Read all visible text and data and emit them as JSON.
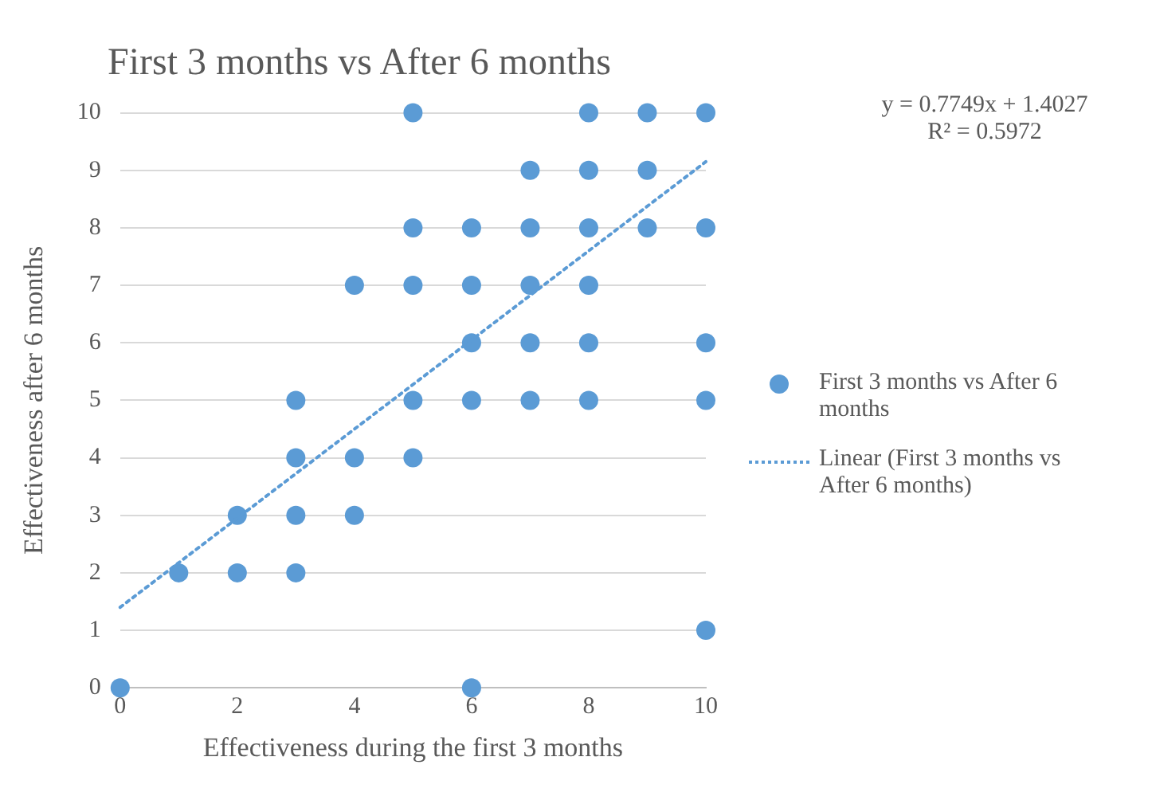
{
  "chart_data": {
    "type": "scatter",
    "title": "First 3 months vs After 6 months",
    "xlabel": "Effectiveness during the first 3 months",
    "ylabel": "Effectiveness after 6 months",
    "annotations": [
      "y = 0.7749x + 1.4027",
      "R² = 0.5972"
    ],
    "xlim": [
      0,
      10
    ],
    "xticks": [
      0,
      2,
      4,
      6,
      8,
      10
    ],
    "ylim": [
      0,
      10
    ],
    "yticks": [
      0,
      1,
      2,
      3,
      4,
      5,
      6,
      7,
      8,
      9,
      10
    ],
    "grid": "y",
    "legend": "right",
    "marker": "circle",
    "series": [
      {
        "name": "First 3 months vs After 6 months",
        "type": "scatter",
        "color": "#5b9bd5",
        "x": [
          5,
          8,
          9,
          10,
          7,
          8,
          9,
          5,
          6,
          7,
          8,
          9,
          10,
          4,
          5,
          6,
          7,
          8,
          6,
          7,
          8,
          10,
          3,
          5,
          6,
          7,
          8,
          10,
          3,
          4,
          5,
          2,
          3,
          4,
          1,
          2,
          3,
          10,
          0,
          6
        ],
        "values": [
          10,
          10,
          10,
          10,
          9,
          9,
          9,
          8,
          8,
          8,
          8,
          8,
          8,
          7,
          7,
          7,
          7,
          7,
          6,
          6,
          6,
          6,
          5,
          5,
          5,
          5,
          5,
          5,
          4,
          4,
          4,
          3,
          3,
          3,
          2,
          2,
          2,
          1,
          0,
          0
        ]
      },
      {
        "name": "Linear (First 3 months vs After 6 months)",
        "type": "line",
        "color": "#5b9bd5",
        "line_style": "dotted",
        "marker": "none",
        "x": [
          0,
          10
        ],
        "values": [
          1.4,
          9.15
        ]
      }
    ]
  }
}
